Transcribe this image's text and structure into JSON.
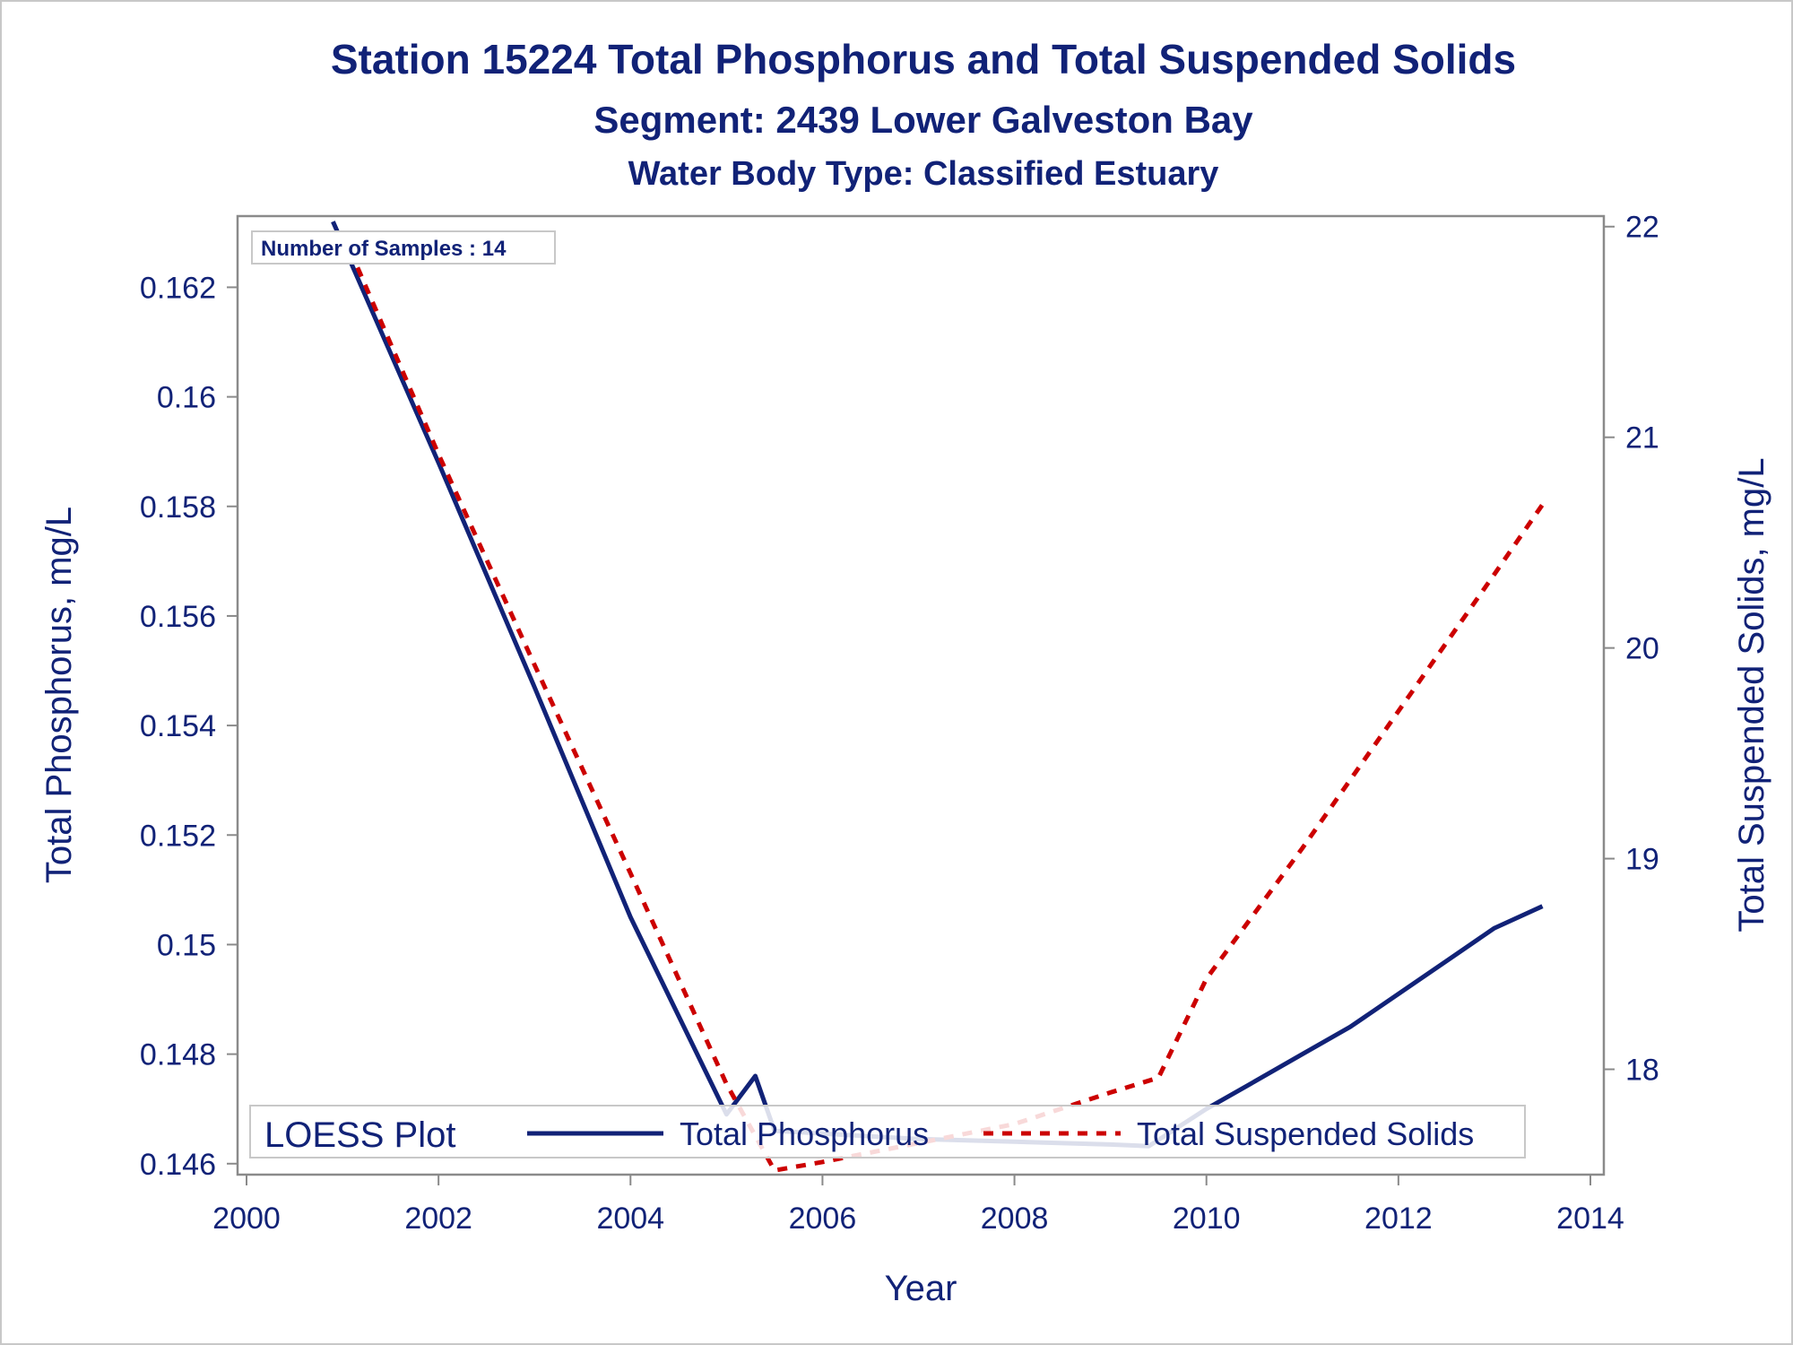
{
  "chart_data": {
    "type": "line",
    "title": "Station 15224  Total Phosphorus and Total Suspended Solids",
    "subtitle1": "Segment: 2439  Lower Galveston Bay",
    "subtitle2": "Water Body Type: Classified Estuary",
    "xlabel": "Year",
    "ylabel_left": "Total Phosphorus, mg/L",
    "ylabel_right": "Total Suspended Solids, mg/L",
    "xlim": [
      2000,
      2014
    ],
    "ylim_left": [
      0.1458,
      0.1633
    ],
    "ylim_right": [
      17.5,
      22.05
    ],
    "x_ticks": [
      "2000",
      "2002",
      "2004",
      "2006",
      "2008",
      "2010",
      "2012",
      "2014"
    ],
    "y_left_ticks": [
      "0.146",
      "0.148",
      "0.15",
      "0.152",
      "0.154",
      "0.156",
      "0.158",
      "0.16",
      "0.162"
    ],
    "y_right_ticks": [
      "18",
      "19",
      "20",
      "21",
      "22"
    ],
    "inset_label": "Number of Samples : 14",
    "legend": {
      "title": "LOESS Plot",
      "placement": "bottom-inside",
      "entries": [
        "Total Phosphorus",
        "Total Suspended Solids"
      ]
    },
    "grid": false,
    "series": [
      {
        "name": "Total Phosphorus",
        "axis": "left",
        "color": "#112277",
        "style": "solid",
        "x": [
          2000.9,
          2002.0,
          2003.0,
          2004.0,
          2005.0,
          2005.3,
          2005.5,
          2006.0,
          2007.0,
          2008.0,
          2009.0,
          2009.4,
          2010.0,
          2010.5,
          2011.0,
          2011.5,
          2012.0,
          2012.5,
          2013.0,
          2013.5
        ],
        "values": [
          0.1632,
          0.1588,
          0.1547,
          0.1505,
          0.1469,
          0.1476,
          0.1466,
          0.14655,
          0.14645,
          0.1464,
          0.14635,
          0.14632,
          0.147,
          0.1475,
          0.148,
          0.1485,
          0.1491,
          0.1497,
          0.1503,
          0.1507
        ]
      },
      {
        "name": "Total Suspended Solids",
        "axis": "right",
        "color": "#cc0000",
        "style": "dashed",
        "x": [
          2001.0,
          2002.0,
          2003.0,
          2004.0,
          2005.0,
          2005.5,
          2006.0,
          2007.0,
          2008.0,
          2009.0,
          2009.5,
          2010.0,
          2011.0,
          2012.0,
          2013.0,
          2013.5
        ],
        "values": [
          21.97,
          20.92,
          19.92,
          18.93,
          17.93,
          17.52,
          17.56,
          17.65,
          17.74,
          17.89,
          17.96,
          18.43,
          19.05,
          19.7,
          20.35,
          20.68
        ]
      }
    ]
  }
}
